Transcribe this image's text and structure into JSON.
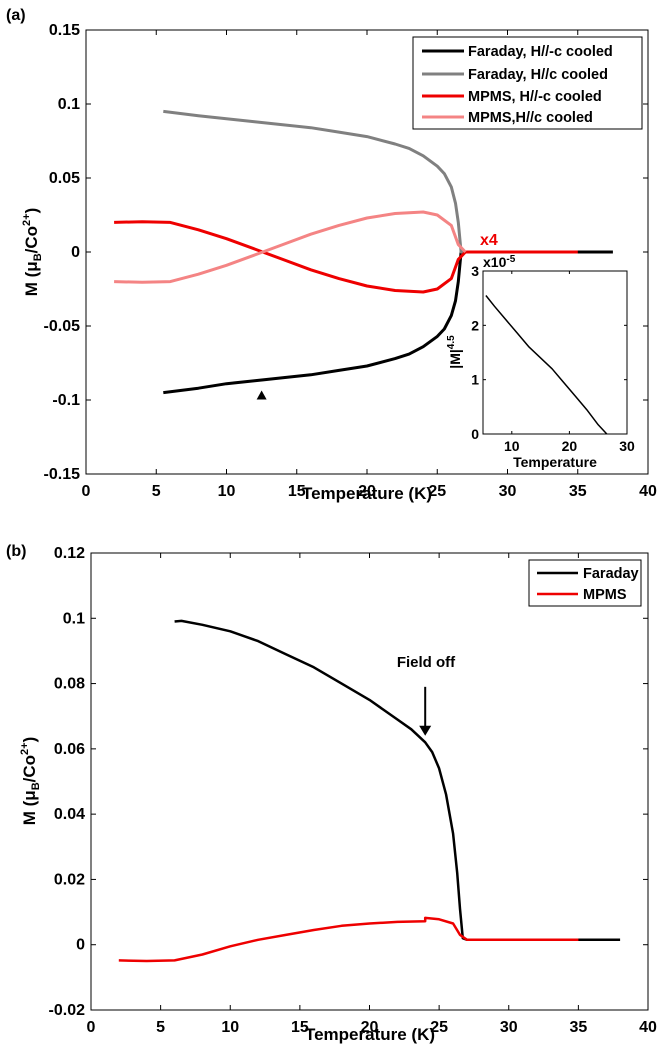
{
  "chart_data": [
    {
      "type": "line",
      "panel_label": "(a)",
      "xlabel": "Temperature (K)",
      "ylabel_parts": {
        "base": "M (μ",
        "sub": "B",
        "mid": "/Co",
        "sup": "2+",
        "end": ")"
      },
      "xlim": [
        0,
        40
      ],
      "ylim": [
        -0.15,
        0.15
      ],
      "xticks": [
        "0",
        "5",
        "10",
        "15",
        "20",
        "25",
        "30",
        "35",
        "40"
      ],
      "yticks": [
        "-0.15",
        "-0.1",
        "-0.05",
        "0",
        "0.05",
        "0.1",
        "0.15"
      ],
      "legend_position": "top-right",
      "annotation": "x4",
      "marker": {
        "shape": "triangle-up",
        "x": 12.5,
        "y": -0.097
      },
      "series": [
        {
          "name": "Faraday, H//-c cooled",
          "color": "#000000",
          "x": [
            5.5,
            8,
            10,
            12,
            14,
            16,
            18,
            20,
            22,
            23,
            24,
            25,
            25.5,
            26,
            26.3,
            26.5,
            26.7,
            27,
            30,
            33,
            35,
            37.5
          ],
          "y": [
            -0.095,
            -0.092,
            -0.089,
            -0.087,
            -0.085,
            -0.083,
            -0.08,
            -0.077,
            -0.072,
            -0.069,
            -0.064,
            -0.057,
            -0.052,
            -0.043,
            -0.033,
            -0.02,
            0,
            0,
            0,
            0,
            0,
            0
          ]
        },
        {
          "name": "Faraday, H//c cooled",
          "color": "#808080",
          "x": [
            5.5,
            8,
            10,
            12,
            14,
            16,
            18,
            20,
            22,
            23,
            24,
            25,
            25.5,
            26,
            26.3,
            26.5,
            26.7,
            27
          ],
          "y": [
            0.095,
            0.092,
            0.09,
            0.088,
            0.086,
            0.084,
            0.081,
            0.078,
            0.073,
            0.07,
            0.065,
            0.058,
            0.053,
            0.044,
            0.033,
            0.02,
            0,
            0
          ]
        },
        {
          "name": "MPMS, H//-c cooled",
          "color": "#ee0000",
          "x": [
            2,
            4,
            6,
            8,
            10,
            12,
            14,
            16,
            18,
            20,
            22,
            24,
            25,
            26,
            26.5,
            27,
            30,
            35
          ],
          "y": [
            0.02,
            0.0205,
            0.02,
            0.015,
            0.009,
            0.002,
            -0.005,
            -0.012,
            -0.018,
            -0.023,
            -0.026,
            -0.027,
            -0.025,
            -0.018,
            -0.005,
            0,
            0,
            0
          ]
        },
        {
          "name": "MPMS,H//c cooled",
          "color": "#f48484",
          "x": [
            2,
            4,
            6,
            8,
            10,
            12,
            14,
            16,
            18,
            20,
            22,
            24,
            25,
            26,
            26.5,
            27
          ],
          "y": [
            -0.02,
            -0.0205,
            -0.02,
            -0.015,
            -0.009,
            -0.002,
            0.005,
            0.012,
            0.018,
            0.023,
            0.026,
            0.027,
            0.025,
            0.018,
            0.005,
            0
          ]
        }
      ],
      "inset": {
        "type": "line",
        "xlabel": "Temperature",
        "ylabel_parts": {
          "base": "|M|",
          "sup": "4.5"
        },
        "scale_label": {
          "base": "x10",
          "sup": "-5"
        },
        "xlim": [
          5,
          30
        ],
        "ylim": [
          0,
          3
        ],
        "xticks": [
          "10",
          "20",
          "30"
        ],
        "yticks": [
          "0",
          "1",
          "2",
          "3"
        ],
        "series": [
          {
            "color": "#000000",
            "x": [
              5.5,
              7,
              9,
              11,
              13,
              15,
              17,
              19,
              21,
              23,
              25,
              26.5
            ],
            "y": [
              2.55,
              2.35,
              2.1,
              1.85,
              1.6,
              1.4,
              1.2,
              0.95,
              0.7,
              0.45,
              0.17,
              0
            ]
          }
        ]
      }
    },
    {
      "type": "line",
      "panel_label": "(b)",
      "xlabel": "Temperature (K)",
      "ylabel_parts": {
        "base": "M (μ",
        "sub": "B",
        "mid": "/Co",
        "sup": "2+",
        "end": ")"
      },
      "xlim": [
        0,
        40
      ],
      "ylim": [
        -0.02,
        0.12
      ],
      "xticks": [
        "0",
        "5",
        "10",
        "15",
        "20",
        "25",
        "30",
        "35",
        "40"
      ],
      "yticks": [
        "-0.02",
        "0",
        "0.02",
        "0.04",
        "0.06",
        "0.08",
        "0.1",
        "0.12"
      ],
      "legend_position": "top-right",
      "annotation": "Field off",
      "annotation_arrow": {
        "x": 24,
        "y_from": 0.079,
        "y_to": 0.064
      },
      "series": [
        {
          "name": "Faraday",
          "color": "#000000",
          "x": [
            6,
            6.5,
            8,
            10,
            12,
            14,
            16,
            18,
            20,
            22,
            23,
            24,
            24.5,
            25,
            25.5,
            26,
            26.3,
            26.5,
            26.7,
            27,
            30,
            35,
            38
          ],
          "y": [
            0.099,
            0.0992,
            0.098,
            0.096,
            0.093,
            0.089,
            0.085,
            0.08,
            0.075,
            0.069,
            0.066,
            0.062,
            0.059,
            0.054,
            0.046,
            0.034,
            0.022,
            0.011,
            0.002,
            0.0015,
            0.0015,
            0.0015,
            0.0015
          ]
        },
        {
          "name": "MPMS",
          "color": "#ee0000",
          "x": [
            2,
            4,
            6,
            8,
            10,
            12,
            14,
            16,
            18,
            20,
            22,
            24,
            24,
            25,
            26,
            26.5,
            27,
            30,
            35
          ],
          "y": [
            -0.0048,
            -0.005,
            -0.0048,
            -0.003,
            -0.0005,
            0.0015,
            0.003,
            0.0045,
            0.0058,
            0.0065,
            0.007,
            0.0072,
            0.0082,
            0.0078,
            0.0065,
            0.003,
            0.0015,
            0.0015,
            0.0015
          ]
        }
      ]
    }
  ]
}
